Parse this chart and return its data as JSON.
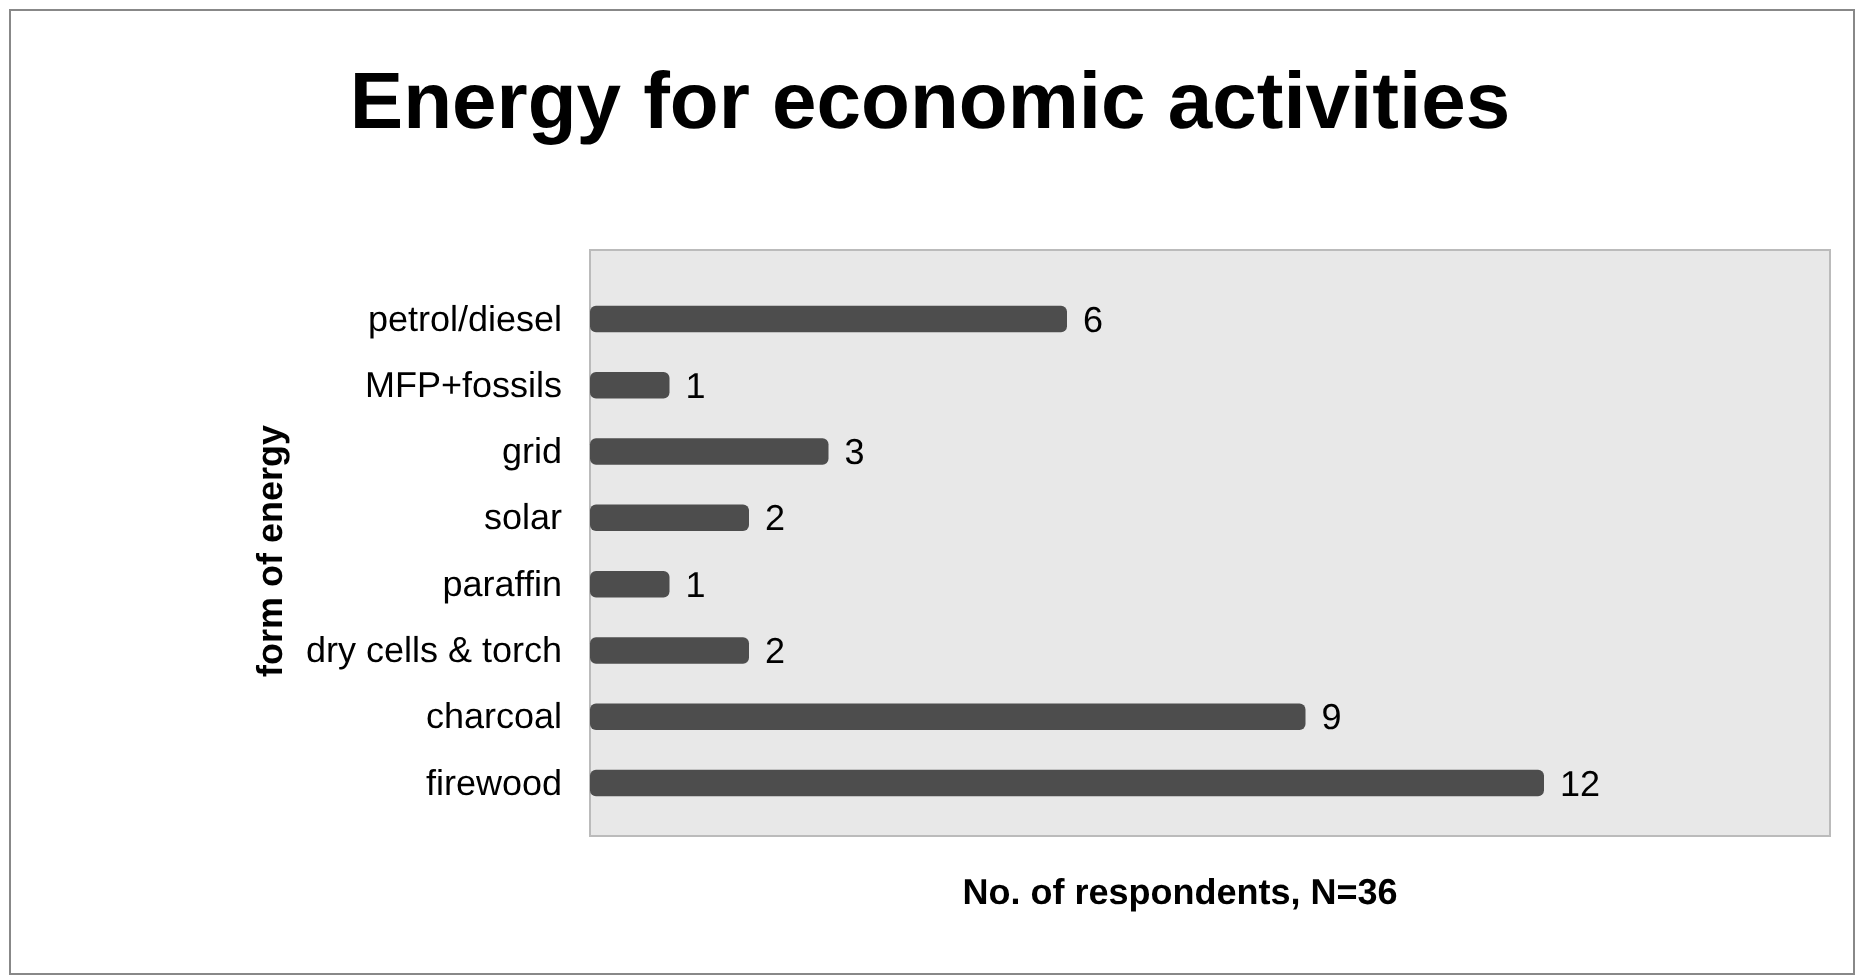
{
  "chart_data": {
    "type": "bar",
    "orientation": "horizontal",
    "title": "Energy for economic activities",
    "xlabel": "No. of respondents, N=36",
    "ylabel": "form of energy",
    "categories": [
      "petrol/diesel",
      "MFP+fossils",
      "grid",
      "solar",
      "paraffin",
      "dry cells & torch",
      "charcoal",
      "firewood"
    ],
    "values": [
      6,
      1,
      3,
      2,
      1,
      2,
      9,
      12
    ],
    "color": "#4d4d4d",
    "data_labels": true
  }
}
